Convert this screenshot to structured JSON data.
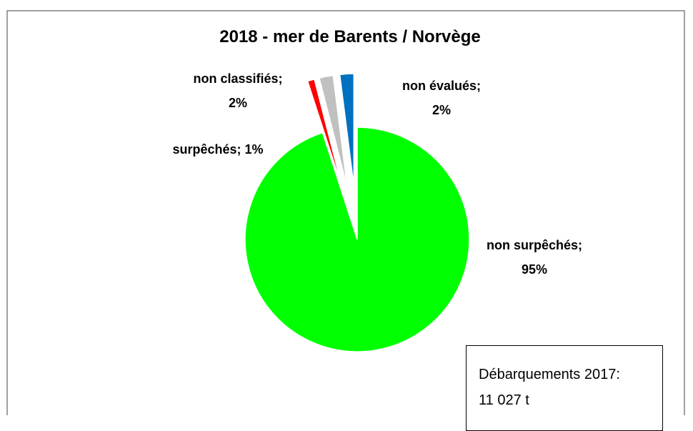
{
  "chart_data": {
    "type": "pie",
    "title": "2018 - mer de Barents / Norvège",
    "categories": [
      "non surpêchés;",
      "surpêchés;",
      "non classifiés;",
      "non évalués;"
    ],
    "values": [
      95,
      1,
      2,
      2
    ],
    "value_labels": [
      "95%",
      "1%",
      "2%",
      "2%"
    ],
    "colors": [
      "#00ff00",
      "#ff0000",
      "#c0c0c0",
      "#0070c0"
    ],
    "exploded": [
      false,
      true,
      true,
      true
    ],
    "annotation": [
      "Débarquements 2017:",
      "11 027 t"
    ]
  }
}
